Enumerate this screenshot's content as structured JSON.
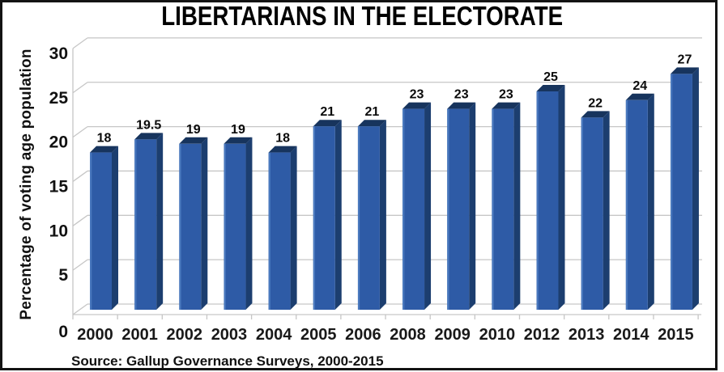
{
  "title": "LIBERTARIANS IN THE ELECTORATE",
  "source_note": "Source: Gallup Governance Surveys, 2000-2015",
  "chart_data": {
    "type": "bar",
    "title": "LIBERTARIANS IN THE ELECTORATE",
    "categories": [
      "2000",
      "2001",
      "2002",
      "2003",
      "2004",
      "2005",
      "2006",
      "2008",
      "2009",
      "2010",
      "2012",
      "2013",
      "2014",
      "2015"
    ],
    "values": [
      18,
      19.5,
      19,
      19,
      18,
      21,
      21,
      23,
      23,
      23,
      25,
      22,
      24,
      27
    ],
    "value_labels": [
      "18",
      "19.5",
      "19",
      "19",
      "18",
      "21",
      "21",
      "23",
      "23",
      "23",
      "25",
      "22",
      "24",
      "27"
    ],
    "xlabel": "",
    "ylabel": "Percentage of voting age population",
    "ylim": [
      0,
      30
    ],
    "yticks": [
      0,
      5,
      10,
      15,
      20,
      25,
      30
    ],
    "grid": "horizontal-back-wall-3d",
    "legend": "none",
    "bar_style": "3d-beveled",
    "colors": {
      "bar_front": "#2E5BA6",
      "bar_top": "#17345D",
      "bar_side": "#1C3E6F",
      "bar_highlight": "#4A79BE",
      "grid_line": "#c6c6c6",
      "text": "#111111",
      "frame": "#131313",
      "background": "#ffffff"
    }
  }
}
